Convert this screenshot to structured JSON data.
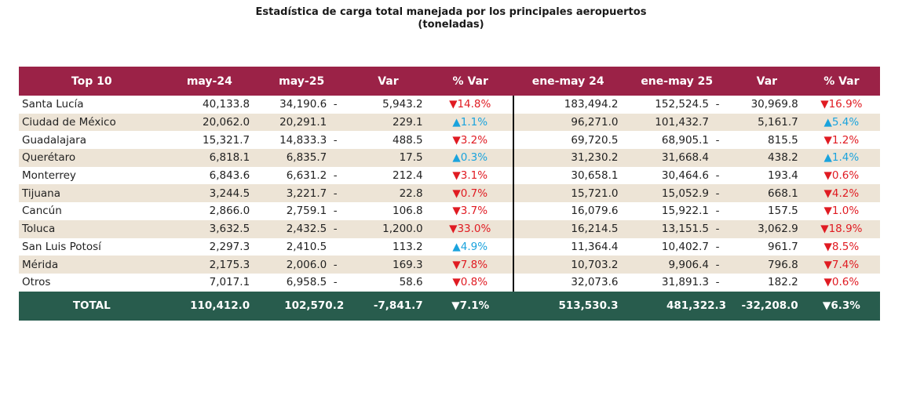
{
  "title": {
    "line1": "Estadística de carga total manejada por los principales aeropuertos",
    "line2": "(toneladas)"
  },
  "headers": [
    "Top 10",
    "may-24",
    "may-25",
    "Var",
    "% Var",
    "ene-may 24",
    "ene-may 25",
    "Var",
    "% Var"
  ],
  "rows": [
    {
      "name": "Santa Lucía",
      "may24": "40,133.8",
      "may25": "34,190.6",
      "var_neg": true,
      "var": "5,943.2",
      "pvar_dir": "down",
      "pvar": "14.8%",
      "ene24": "183,494.2",
      "ene25": "152,524.5",
      "var2_neg": true,
      "var2": "30,969.8",
      "pvar2_dir": "down",
      "pvar2": "16.9%"
    },
    {
      "name": "Ciudad de México",
      "may24": "20,062.0",
      "may25": "20,291.1",
      "var_neg": false,
      "var": "229.1",
      "pvar_dir": "up",
      "pvar": "1.1%",
      "ene24": "96,271.0",
      "ene25": "101,432.7",
      "var2_neg": false,
      "var2": "5,161.7",
      "pvar2_dir": "up",
      "pvar2": "5.4%"
    },
    {
      "name": "Guadalajara",
      "may24": "15,321.7",
      "may25": "14,833.3",
      "var_neg": true,
      "var": "488.5",
      "pvar_dir": "down",
      "pvar": "3.2%",
      "ene24": "69,720.5",
      "ene25": "68,905.1",
      "var2_neg": true,
      "var2": "815.5",
      "pvar2_dir": "down",
      "pvar2": "1.2%"
    },
    {
      "name": "Querétaro",
      "may24": "6,818.1",
      "may25": "6,835.7",
      "var_neg": false,
      "var": "17.5",
      "pvar_dir": "up",
      "pvar": "0.3%",
      "ene24": "31,230.2",
      "ene25": "31,668.4",
      "var2_neg": false,
      "var2": "438.2",
      "pvar2_dir": "up",
      "pvar2": "1.4%"
    },
    {
      "name": "Monterrey",
      "may24": "6,843.6",
      "may25": "6,631.2",
      "var_neg": true,
      "var": "212.4",
      "pvar_dir": "down",
      "pvar": "3.1%",
      "ene24": "30,658.1",
      "ene25": "30,464.6",
      "var2_neg": true,
      "var2": "193.4",
      "pvar2_dir": "down",
      "pvar2": "0.6%"
    },
    {
      "name": "Tijuana",
      "may24": "3,244.5",
      "may25": "3,221.7",
      "var_neg": true,
      "var": "22.8",
      "pvar_dir": "down",
      "pvar": "0.7%",
      "ene24": "15,721.0",
      "ene25": "15,052.9",
      "var2_neg": true,
      "var2": "668.1",
      "pvar2_dir": "down",
      "pvar2": "4.2%"
    },
    {
      "name": "Cancún",
      "may24": "2,866.0",
      "may25": "2,759.1",
      "var_neg": true,
      "var": "106.8",
      "pvar_dir": "down",
      "pvar": "3.7%",
      "ene24": "16,079.6",
      "ene25": "15,922.1",
      "var2_neg": true,
      "var2": "157.5",
      "pvar2_dir": "down",
      "pvar2": "1.0%"
    },
    {
      "name": "Toluca",
      "may24": "3,632.5",
      "may25": "2,432.5",
      "var_neg": true,
      "var": "1,200.0",
      "pvar_dir": "down",
      "pvar": "33.0%",
      "ene24": "16,214.5",
      "ene25": "13,151.5",
      "var2_neg": true,
      "var2": "3,062.9",
      "pvar2_dir": "down",
      "pvar2": "18.9%"
    },
    {
      "name": "San Luis Potosí",
      "may24": "2,297.3",
      "may25": "2,410.5",
      "var_neg": false,
      "var": "113.2",
      "pvar_dir": "up",
      "pvar": "4.9%",
      "ene24": "11,364.4",
      "ene25": "10,402.7",
      "var2_neg": true,
      "var2": "961.7",
      "pvar2_dir": "down",
      "pvar2": "8.5%"
    },
    {
      "name": "Mérida",
      "may24": "2,175.3",
      "may25": "2,006.0",
      "var_neg": true,
      "var": "169.3",
      "pvar_dir": "down",
      "pvar": "7.8%",
      "ene24": "10,703.2",
      "ene25": "9,906.4",
      "var2_neg": true,
      "var2": "796.8",
      "pvar2_dir": "down",
      "pvar2": "7.4%"
    },
    {
      "name": "Otros",
      "may24": "7,017.1",
      "may25": "6,958.5",
      "var_neg": true,
      "var": "58.6",
      "pvar_dir": "down",
      "pvar": "0.8%",
      "ene24": "32,073.6",
      "ene25": "31,891.3",
      "var2_neg": true,
      "var2": "182.2",
      "pvar2_dir": "down",
      "pvar2": "0.6%"
    }
  ],
  "total": {
    "name": "TOTAL",
    "may24": "110,412.0",
    "may25": "102,570.2",
    "var": "-7,841.7",
    "pvar_dir": "down",
    "pvar": "7.1%",
    "ene24": "513,530.3",
    "ene25": "481,322.3",
    "var2": "-32,208.0",
    "pvar2_dir": "down",
    "pvar2": "6.3%"
  },
  "symbols": {
    "down": "▼",
    "up": "▲",
    "minus": "-"
  },
  "colors": {
    "header_bg": "#9b2247",
    "total_bg": "#285c4d",
    "alt_row_bg": "#ede4d6",
    "down": "#e01b22",
    "up": "#1aa3dd"
  }
}
